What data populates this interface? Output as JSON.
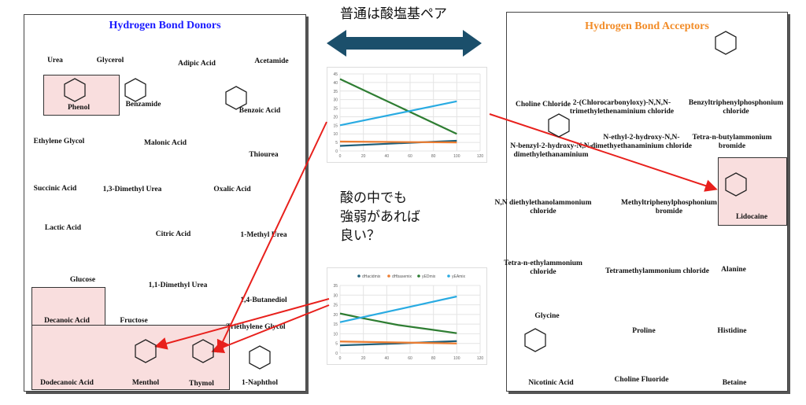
{
  "donors": {
    "title": "Hydrogen Bond Donors",
    "title_color": "#1a1aff",
    "compounds": [
      "Urea",
      "Glycerol",
      "Adipic Acid",
      "Acetamide",
      "Phenol",
      "Benzamide",
      "Benzoic Acid",
      "Ethylene Glycol",
      "Malonic Acid",
      "Thiourea",
      "Succinic Acid",
      "1,3-Dimethyl Urea",
      "Oxalic Acid",
      "Lactic Acid",
      "Citric Acid",
      "1-Methyl Urea",
      "Glucose",
      "1,1-Dimethyl Urea",
      "1,4-Butanediol",
      "Decanoic Acid",
      "Fructose",
      "Triethylene Glycol",
      "Dodecanoic Acid",
      "Menthol",
      "Thymol",
      "1-Naphthol"
    ]
  },
  "acceptors": {
    "title": "Hydrogen Bond Acceptors",
    "title_color": "#f28c28",
    "compounds": [
      "Choline Chloride",
      "2-(Chlorocarbonyloxy)-N,N,N-\ntrimethylethenaminium chloride",
      "Benzyltriphenylphosphonium\nchloride",
      "N-benzyl-2-hydroxy-N,N-\ndimethylethanaminium",
      "N-ethyl-2-hydroxy-N,N-\ndimethyethanaminium chloride",
      "Tetra-n-butylammonium\nbromide",
      "N,N diethylethanolammonium\nchloride",
      "Methyltriphenylphosphonium\nbromide",
      "Lidocaine",
      "Tetra-n-ethylammonium\nchloride",
      "Tetramethylammonium chloride",
      "Alanine",
      "Glycine",
      "Proline",
      "Histidine",
      "Nicotinic Acid",
      "Choline Fluoride",
      "Betaine"
    ]
  },
  "annotations": {
    "top": "普通は酸塩基ペア",
    "middle": [
      "酸の中でも",
      "強弱があれば",
      "良い？"
    ]
  },
  "highlight_color": "#f9dede",
  "arrow_colors": {
    "double_arrow": "#1b4f6b",
    "pointer": "#e8201c"
  },
  "chart_data": [
    {
      "type": "line",
      "xlim": [
        0,
        120
      ],
      "ylim": [
        0,
        45
      ],
      "xticks": [
        0,
        20,
        40,
        60,
        80,
        100,
        120
      ],
      "yticks": [
        0,
        5,
        10,
        15,
        20,
        25,
        30,
        35,
        40,
        45
      ],
      "grid": true,
      "legend": "none",
      "series": [
        {
          "color": "#1f5f7a",
          "x": [
            0,
            100
          ],
          "y": [
            3,
            6
          ]
        },
        {
          "color": "#ed7d31",
          "x": [
            0,
            100
          ],
          "y": [
            5.5,
            5
          ]
        },
        {
          "color": "#2e7d32",
          "x": [
            0,
            100
          ],
          "y": [
            42,
            10
          ]
        },
        {
          "color": "#29abe2",
          "x": [
            0,
            100
          ],
          "y": [
            15,
            29
          ]
        }
      ]
    },
    {
      "type": "line",
      "xlim": [
        0,
        120
      ],
      "ylim": [
        0,
        35
      ],
      "xticks": [
        0,
        20,
        40,
        60,
        80,
        100,
        120
      ],
      "yticks": [
        0,
        5,
        10,
        15,
        20,
        25,
        30,
        35
      ],
      "grid": true,
      "legend": "top",
      "series": [
        {
          "name": "dHacidmix",
          "color": "#1f5f7a",
          "x": [
            0,
            50,
            100
          ],
          "y": [
            4,
            5,
            6.2
          ]
        },
        {
          "name": "dHbasemix",
          "color": "#ed7d31",
          "x": [
            0,
            50,
            100
          ],
          "y": [
            6,
            5.5,
            5
          ]
        },
        {
          "name": "yEDmix",
          "color": "#2e7d32",
          "x": [
            0,
            20,
            50,
            80,
            100
          ],
          "y": [
            20.5,
            18,
            14.5,
            12,
            10.3
          ]
        },
        {
          "name": "yEAmix",
          "color": "#29abe2",
          "x": [
            0,
            100
          ],
          "y": [
            16,
            29.3
          ]
        }
      ]
    }
  ]
}
